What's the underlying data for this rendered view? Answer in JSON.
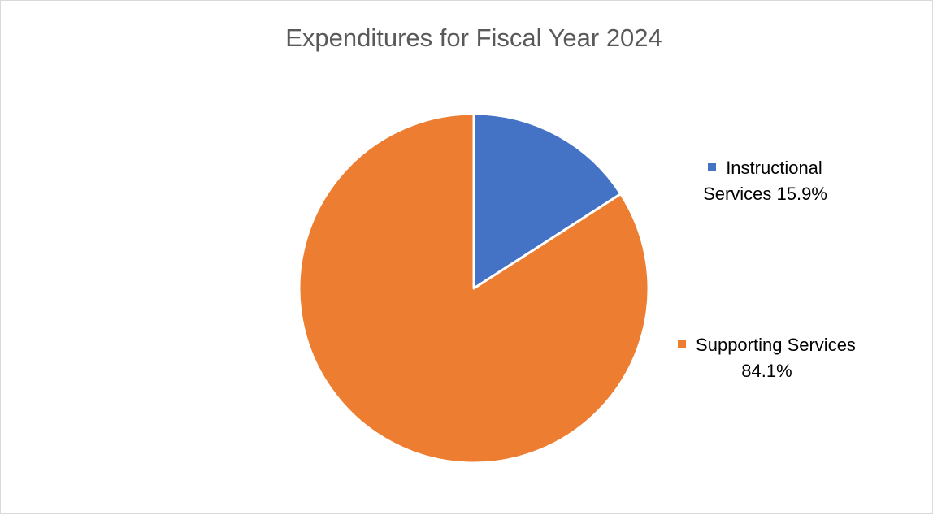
{
  "chart_data": {
    "type": "pie",
    "title": "Expenditures for Fiscal Year 2024",
    "slices": [
      {
        "name": "Instructional Services",
        "label_line1": "Instructional",
        "label_line2": "Services 15.9%",
        "value": 15.9,
        "color": "#4472C4"
      },
      {
        "name": "Supporting Services",
        "label_line1": "Supporting Services",
        "label_line2": "84.1%",
        "value": 84.1,
        "color": "#ED7D31"
      }
    ],
    "legend_position": "right",
    "slice_border_color": "#ffffff"
  }
}
